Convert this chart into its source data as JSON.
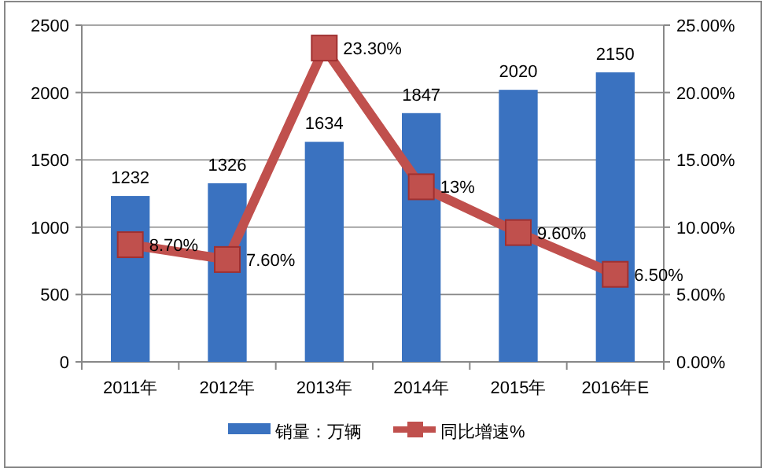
{
  "chart_data": {
    "type": "bar",
    "categories": [
      "2011年",
      "2012年",
      "2013年",
      "2014年",
      "2015年",
      "2016年E"
    ],
    "series": [
      {
        "name": "销量：万辆",
        "color": "#3a72c0",
        "values": [
          1232,
          1326,
          1634,
          1847,
          2020,
          2150
        ],
        "value_labels": [
          "1232",
          "1326",
          "1634",
          "1847",
          "2020",
          "2150"
        ]
      },
      {
        "name": "同比增速%",
        "type": "line",
        "axis": "y2",
        "color": "#c0504d",
        "marker": "square",
        "values": [
          8.7,
          7.6,
          23.3,
          13,
          9.6,
          6.5
        ],
        "value_labels": [
          "8.70%",
          "7.60%",
          "23.30%",
          "13%",
          "9.60%",
          "6.50%"
        ]
      }
    ],
    "ylim": [
      0,
      2500
    ],
    "yticks": [
      0,
      500,
      1000,
      1500,
      2000,
      2500
    ],
    "y2lim": [
      0,
      25
    ],
    "y2ticks": [
      {
        "value": 0,
        "label": "0.00%"
      },
      {
        "value": 5,
        "label": "5.00%"
      },
      {
        "value": 10,
        "label": "10.00%"
      },
      {
        "value": 15,
        "label": "15.00%"
      },
      {
        "value": 20,
        "label": "20.00%"
      },
      {
        "value": 25,
        "label": "25.00%"
      }
    ],
    "grid": "y",
    "legend": "bottom"
  }
}
